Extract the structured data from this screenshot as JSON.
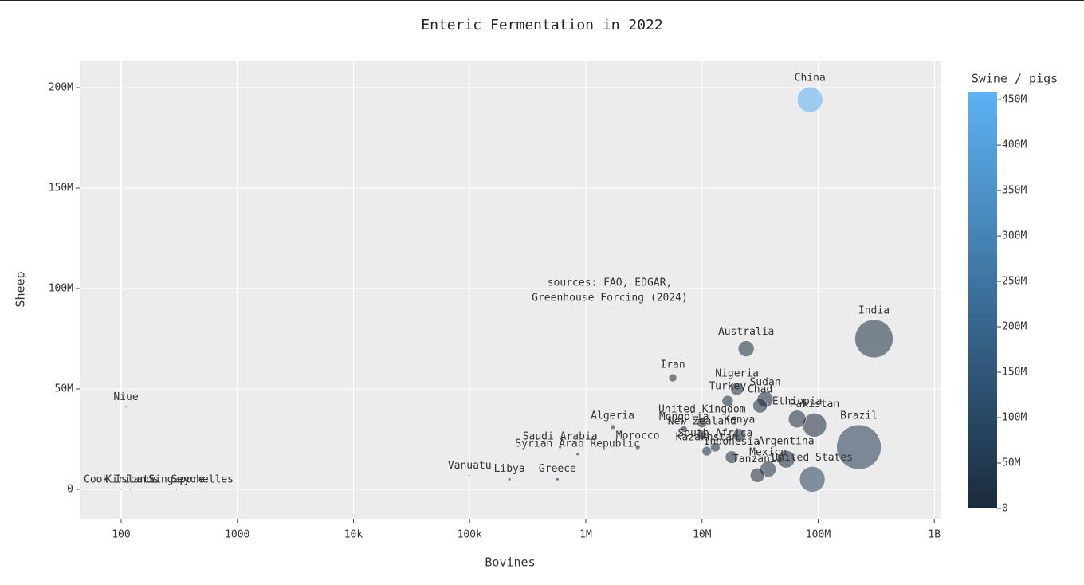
{
  "chart_data": {
    "type": "scatter",
    "title": "Enteric Fermentation in 2022",
    "x_label": "Bovines",
    "y_label": "Sheep",
    "colorbar_title": "Swine / pigs",
    "annotation": [
      "sources: FAO, EDGAR,",
      "Greenhouse Forcing (2024)"
    ],
    "log_x": true,
    "grid": true,
    "xlim": [
      44,
      1130000000
    ],
    "ylim": [
      -14700000,
      213500000
    ],
    "clim": [
      0,
      458000000
    ],
    "colorscale": [
      "#1a2a3c",
      "#5cb2f5"
    ],
    "xticks": [
      100,
      1000,
      {
        "value": 10000,
        "label": "10k"
      },
      {
        "value": 100000,
        "label": "100k"
      },
      {
        "value": 1000000,
        "label": "1M"
      },
      {
        "value": 10000000,
        "label": "10M"
      },
      {
        "value": 100000000,
        "label": "100M"
      },
      {
        "value": 1000000000,
        "label": "1B"
      }
    ],
    "yticks": [
      0,
      {
        "value": 50000000,
        "label": "50M"
      },
      {
        "value": 100000000,
        "label": "100M"
      },
      {
        "value": 150000000,
        "label": "150M"
      },
      {
        "value": 200000000,
        "label": "200M"
      }
    ],
    "cticks": [
      0,
      {
        "value": 50000000,
        "label": "50M"
      },
      {
        "value": 100000000,
        "label": "100M"
      },
      {
        "value": 150000000,
        "label": "150M"
      },
      {
        "value": 200000000,
        "label": "200M"
      },
      {
        "value": 250000000,
        "label": "250M"
      },
      {
        "value": 300000000,
        "label": "300M"
      },
      {
        "value": 350000000,
        "label": "350M"
      },
      {
        "value": 400000000,
        "label": "400M"
      },
      {
        "value": 450000000,
        "label": "450M"
      }
    ],
    "labels": [
      "China",
      "India",
      "Brazil",
      "Australia",
      "Iran",
      "United States",
      "Pakistan",
      "Ethiopia",
      "Sudan",
      "Chad",
      "Nigeria",
      "Turkey",
      "United Kingdom",
      "Mongolia",
      "New Zealand",
      "Kenya",
      "Argentina",
      "Algeria",
      "Saudi Arabia",
      "Syrian Arab Republic",
      "Morocco",
      "Kazakhstan",
      "Indonesia",
      "Mexico",
      "Tanzania",
      "South Africa",
      "Vanuatu",
      "Libya",
      "Greece",
      "Niue",
      "Cook Islands",
      "Kiribati",
      "Singapore",
      "Seychelles"
    ],
    "x": [
      85000000,
      302000000,
      224000000,
      24000000,
      5600000,
      89000000,
      93000000,
      66000000,
      35000000,
      31600000,
      20000000,
      16600000,
      10000000,
      7000000,
      10000000,
      21000000,
      53000000,
      1700000,
      600000,
      850000,
      2800000,
      11000000,
      18000000,
      37000000,
      30000000,
      13000000,
      100000,
      220000,
      570000,
      110,
      100,
      120,
      300,
      500
    ],
    "y": [
      194000000,
      75000000,
      21000000,
      70000000,
      55500000,
      5000000,
      32000000,
      35000000,
      44800000,
      41600000,
      50000000,
      44000000,
      33000000,
      30000000,
      27000000,
      27000000,
      15000000,
      31000000,
      21000000,
      17500000,
      21000000,
      19000000,
      16000000,
      10000000,
      7000000,
      21000000,
      7000000,
      5000000,
      5000000,
      41000000,
      0,
      0,
      0,
      0
    ],
    "color_values": [
      450000000,
      9000000,
      44000000,
      2500000,
      0,
      74000000,
      0,
      1000000,
      0,
      0,
      7000000,
      0,
      5000000,
      0,
      2000000,
      600000,
      5000000,
      0,
      0,
      0,
      0,
      800000,
      8000000,
      18000000,
      500000,
      1400000,
      80000,
      0,
      700000,
      2000,
      3000,
      10000,
      200,
      500
    ],
    "sizes": [
      16,
      24,
      28,
      10,
      5,
      16,
      15,
      11,
      10,
      9,
      8,
      7,
      6,
      4,
      6,
      8,
      11,
      3,
      2,
      2,
      3,
      6,
      8,
      10,
      9,
      6,
      1,
      2,
      2,
      1,
      1,
      1,
      1,
      1
    ]
  }
}
